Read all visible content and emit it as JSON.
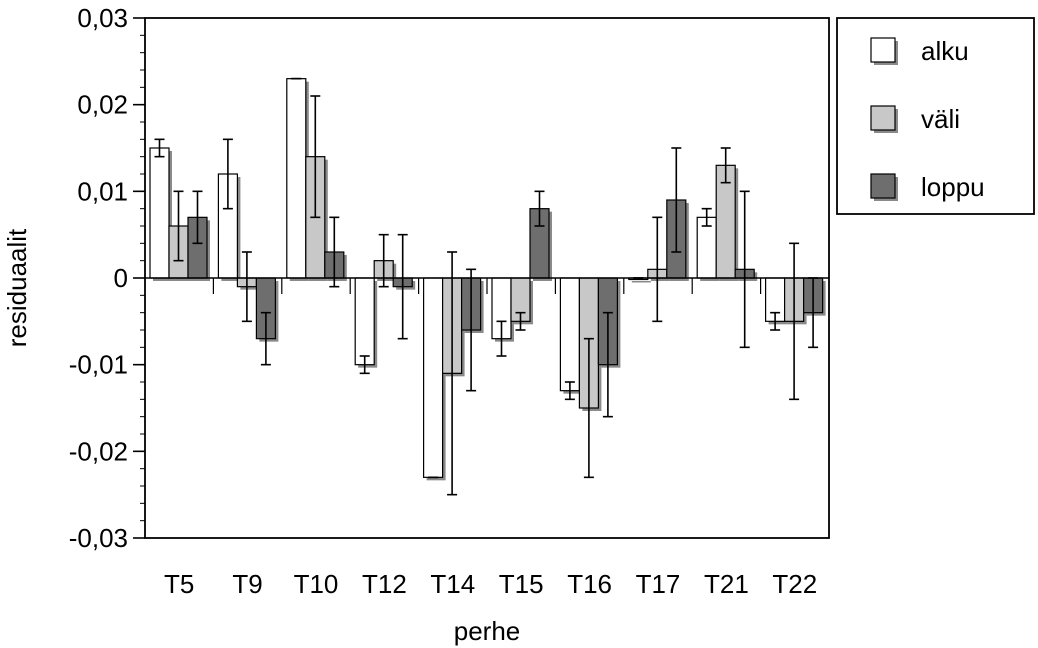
{
  "chart_data": {
    "type": "bar",
    "title": "",
    "xlabel": "perhe",
    "ylabel": "residuaalit",
    "ylim": [
      -0.03,
      0.03
    ],
    "yticks": [
      0.03,
      0.02,
      0.01,
      0,
      -0.01,
      -0.02,
      -0.03
    ],
    "ytick_labels": [
      "0,03",
      "0,02",
      "0,01",
      "0",
      "-0,01",
      "-0,02",
      "-0,03"
    ],
    "categories": [
      "T5",
      "T9",
      "T10",
      "T12",
      "T14",
      "T15",
      "T16",
      "T17",
      "T21",
      "T22"
    ],
    "legend_position": "top-right outside plot",
    "series": [
      {
        "name": "alku",
        "color": "#ffffff",
        "values": [
          0.015,
          0.012,
          0.023,
          -0.01,
          -0.023,
          -0.007,
          -0.013,
          0.0,
          0.007,
          -0.005
        ],
        "error": [
          0.001,
          0.004,
          0.0,
          0.001,
          0.0,
          0.002,
          0.001,
          0.0,
          0.001,
          0.001
        ]
      },
      {
        "name": "väli",
        "color": "#c8c8c8",
        "values": [
          0.006,
          -0.001,
          0.014,
          0.002,
          -0.011,
          -0.005,
          -0.015,
          0.001,
          0.013,
          -0.005
        ],
        "error": [
          0.004,
          0.004,
          0.007,
          0.003,
          0.014,
          0.001,
          0.008,
          0.006,
          0.002,
          0.009
        ]
      },
      {
        "name": "loppu",
        "color": "#6e6e6e",
        "values": [
          0.007,
          -0.007,
          0.003,
          -0.001,
          -0.006,
          0.008,
          -0.01,
          0.009,
          0.001,
          -0.004
        ],
        "error": [
          0.003,
          0.003,
          0.004,
          0.006,
          0.007,
          0.002,
          0.006,
          0.006,
          0.009,
          0.004
        ]
      }
    ]
  }
}
